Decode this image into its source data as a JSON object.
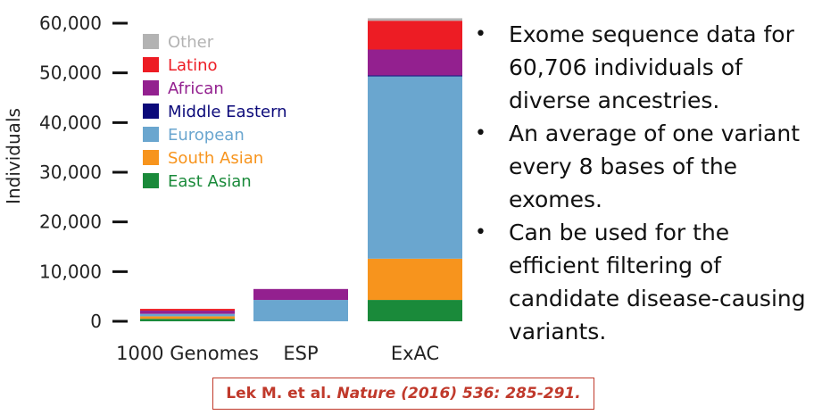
{
  "chart_data": {
    "type": "bar",
    "stacked": true,
    "ylabel": "Individuals",
    "ylim": [
      0,
      60000
    ],
    "yticks": [
      0,
      10000,
      20000,
      30000,
      40000,
      50000,
      60000
    ],
    "ytick_labels": [
      "0",
      "10,000",
      "20,000",
      "30,000",
      "40,000",
      "50,000",
      "60,000"
    ],
    "categories": [
      "1000 Genomes",
      "ESP",
      "ExAC"
    ],
    "legend_placement": "top-left",
    "series": [
      {
        "name": "East Asian",
        "color": "#1a8a3a",
        "values": [
          500,
          0,
          4300
        ]
      },
      {
        "name": "South Asian",
        "color": "#f7941d",
        "values": [
          500,
          0,
          8300
        ]
      },
      {
        "name": "European",
        "color": "#6aa6cf",
        "values": [
          500,
          4300,
          36700
        ]
      },
      {
        "name": "Middle Eastern",
        "color": "#0c0a7a",
        "values": [
          0,
          0,
          200
        ]
      },
      {
        "name": "African",
        "color": "#93208f",
        "values": [
          650,
          2200,
          5200
        ]
      },
      {
        "name": "Latino",
        "color": "#ed1c24",
        "values": [
          350,
          0,
          5800
        ]
      },
      {
        "name": "Other",
        "color": "#b3b3b3",
        "values": [
          0,
          0,
          500
        ]
      }
    ],
    "legend_order": [
      "Other",
      "Latino",
      "African",
      "Middle Eastern",
      "European",
      "South Asian",
      "East Asian"
    ]
  },
  "bullets": [
    "Exome sequence data for 60,706 individuals of diverse ancestries.",
    "An average of one variant every 8 bases of the exomes.",
    "Can be used for the efficient filtering of candidate disease-causing variants."
  ],
  "bullet_symbol": "•",
  "citation": {
    "authors": "Lek M. et al.",
    "journal": "Nature (2016) 536: 285-291."
  }
}
